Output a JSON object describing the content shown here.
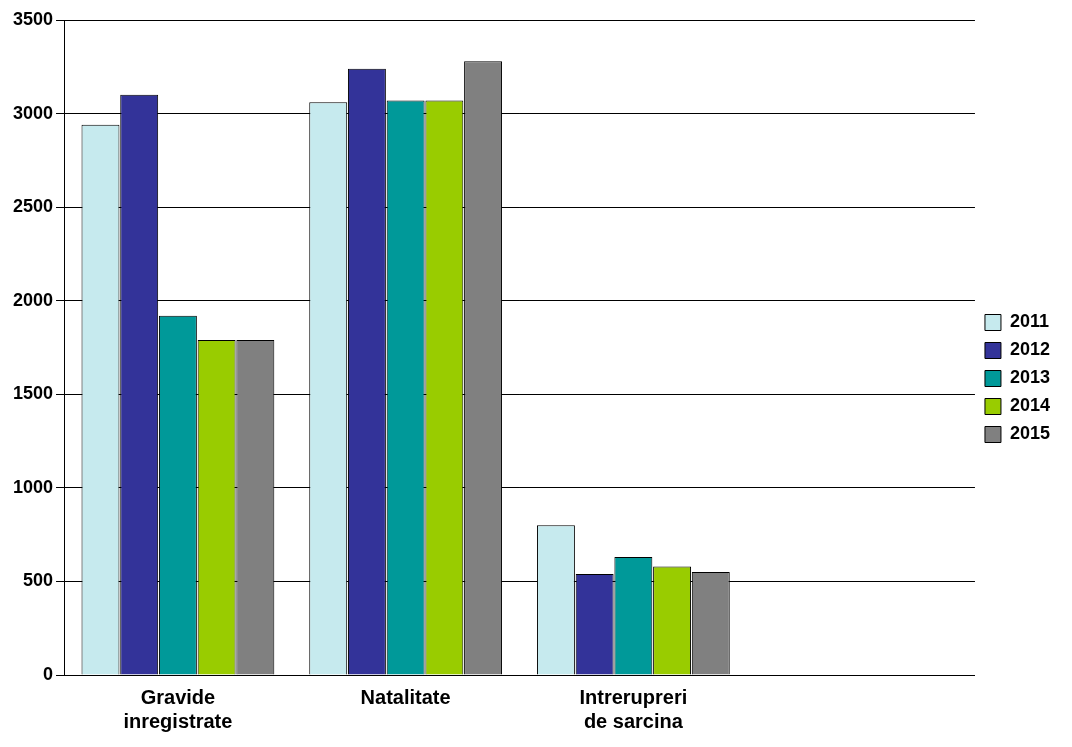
{
  "chart_data": {
    "type": "bar",
    "categories": [
      "Gravide inregistrate",
      "Natalitate",
      "Intrerupreri de sarcina",
      null
    ],
    "series": [
      {
        "name": "2011",
        "color": "#c6eaee",
        "values": [
          2940,
          3060,
          800,
          null
        ]
      },
      {
        "name": "2012",
        "color": "#333399",
        "values": [
          3100,
          3240,
          540,
          null
        ]
      },
      {
        "name": "2013",
        "color": "#009999",
        "values": [
          1920,
          3070,
          630,
          null
        ]
      },
      {
        "name": "2014",
        "color": "#99cc00",
        "values": [
          1790,
          3070,
          580,
          null
        ]
      },
      {
        "name": "2015",
        "color": "#808080",
        "values": [
          1790,
          3280,
          550,
          null
        ]
      }
    ],
    "ylim": [
      0,
      3500
    ],
    "yticks": [
      0,
      500,
      1000,
      1500,
      2000,
      2500,
      3000,
      3500
    ],
    "grid": true,
    "legend": "right"
  }
}
